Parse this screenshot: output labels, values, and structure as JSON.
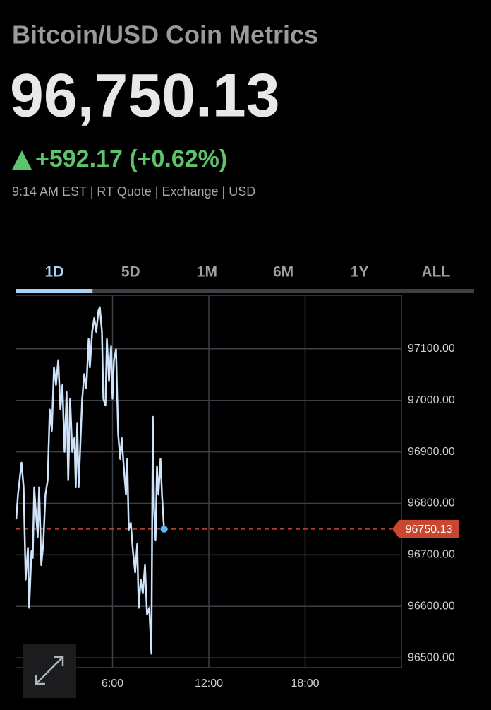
{
  "header": {
    "title": "Bitcoin/USD Coin Metrics",
    "price": "96,750.13",
    "change": "+592.17 (+0.62%)",
    "info": "9:14 AM EST | RT Quote | Exchange | USD"
  },
  "tabs": {
    "items": [
      "1D",
      "5D",
      "1M",
      "6M",
      "1Y",
      "ALL"
    ],
    "selected": 0
  },
  "chart_data": {
    "type": "line",
    "x": [
      0,
      0.11,
      0.33,
      0.46,
      0.59,
      0.73,
      0.81,
      0.95,
      1.03,
      1.12,
      1.21,
      1.34,
      1.43,
      1.56,
      1.69,
      1.82,
      1.96,
      2.09,
      2.22,
      2.35,
      2.48,
      2.62,
      2.75,
      2.88,
      3.01,
      3.14,
      3.24,
      3.36,
      3.49,
      3.63,
      3.71,
      3.8,
      3.89,
      3.98,
      4.11,
      4.24,
      4.37,
      4.51,
      4.59,
      4.73,
      4.86,
      4.99,
      5.12,
      5.21,
      5.34,
      5.43,
      5.56,
      5.65,
      5.78,
      5.91,
      6,
      6.09,
      6.22,
      6.35,
      6.48,
      6.57,
      6.7,
      6.84,
      6.92,
      7.01,
      7.14,
      7.27,
      7.41,
      7.54,
      7.63,
      7.76,
      7.89,
      8.02,
      8.15,
      8.29,
      8.42,
      8.51,
      8.59,
      8.68,
      8.77,
      8.86,
      8.99,
      9.08,
      9.21
    ],
    "series": [
      {
        "color": "#cfe3fb",
        "values": [
          96769,
          96817,
          96879,
          96831,
          96652,
          96714,
          96597,
          96707,
          96694,
          96831,
          96790,
          96735,
          96831,
          96680,
          96721,
          96817,
          96845,
          96982,
          96941,
          97064,
          97030,
          97078,
          96982,
          97030,
          96900,
          97016,
          96845,
          97003,
          96900,
          96927,
          96831,
          96955,
          96831,
          96900,
          97003,
          97051,
          97023,
          97119,
          97064,
          97133,
          97160,
          97133,
          97174,
          97181,
          97133,
          97003,
          96990,
          97119,
          97037,
          97105,
          97003,
          97078,
          97099,
          96934,
          96886,
          96927,
          96872,
          96817,
          96886,
          96749,
          96762,
          96707,
          96666,
          96721,
          96597,
          96652,
          96625,
          96680,
          96584,
          96597,
          96508,
          96968,
          96790,
          96728,
          96872,
          96817,
          96886,
          96817,
          96750.13
        ]
      }
    ],
    "last_value": 96750.13,
    "last_color": "#c9462f",
    "xlim": [
      0,
      24
    ],
    "ylim": [
      96481,
      97204
    ],
    "xticks": [
      {
        "value": 6,
        "label": "6:00"
      },
      {
        "value": 12,
        "label": "12:00"
      },
      {
        "value": 18,
        "label": "18:00"
      }
    ],
    "yticks": [
      {
        "value": 96500,
        "label": "96500.00"
      },
      {
        "value": 96600,
        "label": "96600.00"
      },
      {
        "value": 96700,
        "label": "96700.00"
      },
      {
        "value": 96800,
        "label": "96800.00"
      },
      {
        "value": 96900,
        "label": "96900.00"
      },
      {
        "value": 97000,
        "label": "97000.00"
      },
      {
        "value": 97100,
        "label": "97100.00"
      }
    ],
    "grid": true
  }
}
